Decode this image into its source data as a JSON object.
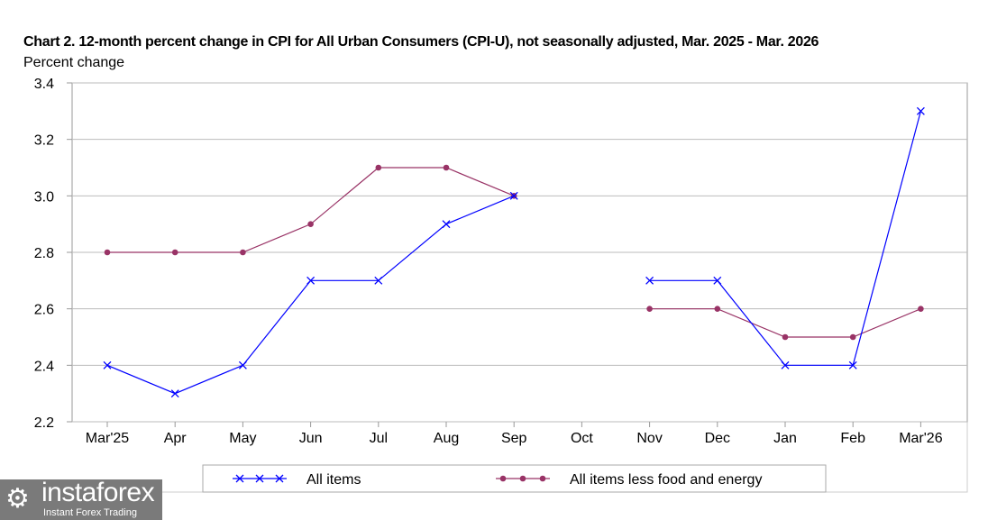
{
  "chart_data": {
    "type": "line",
    "title": "Chart 2. 12-month percent change in CPI for All Urban Consumers (CPI-U), not seasonally adjusted, Mar. 2025 - Mar. 2026",
    "ylabel": "Percent change",
    "xlabel": "",
    "categories": [
      "Mar'25",
      "Apr",
      "May",
      "Jun",
      "Jul",
      "Aug",
      "Sep",
      "Oct",
      "Nov",
      "Dec",
      "Jan",
      "Feb",
      "Mar'26"
    ],
    "ylim": [
      2.2,
      3.4
    ],
    "yticks": [
      "2.2",
      "2.4",
      "2.6",
      "2.8",
      "3.0",
      "3.2",
      "3.4"
    ],
    "grid": true,
    "legend_position": "bottom",
    "series": [
      {
        "name": "All items",
        "color": "#0000ff",
        "marker": "x",
        "values": [
          2.4,
          2.3,
          2.4,
          2.7,
          2.7,
          2.9,
          3.0,
          null,
          2.7,
          2.7,
          2.4,
          2.4,
          3.3
        ]
      },
      {
        "name": "All items less food and energy",
        "color": "#993366",
        "marker": "circle",
        "values": [
          2.8,
          2.8,
          2.8,
          2.9,
          3.1,
          3.1,
          3.0,
          null,
          2.6,
          2.6,
          2.5,
          2.5,
          2.6
        ]
      }
    ]
  },
  "watermark": {
    "brand": "instaforex",
    "tagline": "Instant Forex Trading"
  }
}
